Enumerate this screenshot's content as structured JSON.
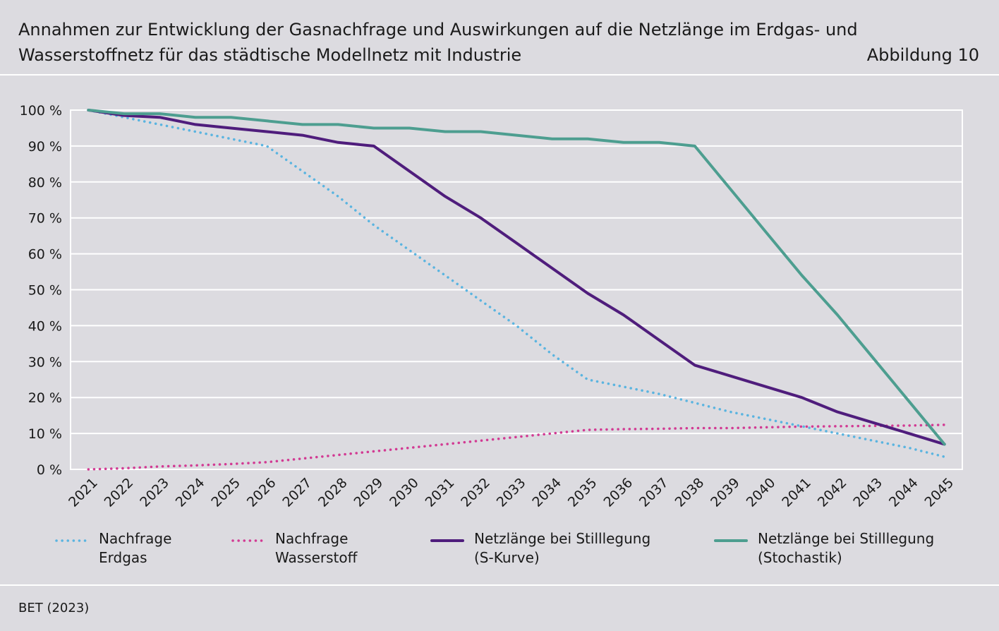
{
  "header": {
    "title": "Annahmen zur Entwicklung der Gasnachfrage und Auswirkungen auf die Netzlänge im Erdgas- und Wasserstoffnetz für das städtische Modellnetz mit Industrie",
    "figure_number": "Abbildung 10"
  },
  "source": "BET (2023)",
  "chart_data": {
    "type": "line",
    "title": "",
    "xlabel": "",
    "ylabel": "",
    "x": [
      "2021",
      "2022",
      "2023",
      "2024",
      "2025",
      "2026",
      "2027",
      "2028",
      "2029",
      "2030",
      "2031",
      "2032",
      "2033",
      "2034",
      "2035",
      "2036",
      "2037",
      "2038",
      "2039",
      "2040",
      "2041",
      "2042",
      "2043",
      "2044",
      "2045"
    ],
    "ylim": [
      0,
      100
    ],
    "y_ticks": [
      0,
      10,
      20,
      30,
      40,
      50,
      60,
      70,
      80,
      90,
      100
    ],
    "y_tick_labels": [
      "0 %",
      "10 %",
      "20 %",
      "30 %",
      "40 %",
      "50 %",
      "60 %",
      "70 %",
      "80 %",
      "90 %",
      "100 %"
    ],
    "grid": true,
    "legend_position": "bottom",
    "series": [
      {
        "name": "Nachfrage\nErdgas",
        "style": "dotted",
        "color": "#5ab4e0",
        "values": [
          100,
          98,
          96,
          94,
          92,
          90,
          83,
          76,
          68,
          61,
          54,
          47,
          40,
          32,
          25,
          23,
          21,
          18.5,
          16,
          14,
          12,
          10,
          8,
          6,
          3.5
        ]
      },
      {
        "name": "Nachfrage\nWasserstoff",
        "style": "dotted",
        "color": "#d23a93",
        "values": [
          0,
          0.3,
          0.8,
          1.1,
          1.5,
          2,
          3,
          4,
          5,
          6,
          7,
          8,
          9,
          10,
          11,
          11.2,
          11.3,
          11.5,
          11.5,
          11.7,
          11.9,
          12,
          12.1,
          12.2,
          12.4
        ]
      },
      {
        "name": "Netzlänge bei Stilllegung\n(S-Kurve)",
        "style": "solid",
        "color": "#4f1d7c",
        "values": [
          100,
          98.5,
          98,
          96,
          95,
          94,
          93,
          91,
          90,
          83,
          76,
          70,
          63,
          56,
          49,
          43,
          36,
          29,
          26,
          23,
          20,
          16,
          13,
          10,
          7
        ]
      },
      {
        "name": "Netzlänge bei Stilllegung\n(Stochastik)",
        "style": "solid",
        "color": "#4d9e90",
        "values": [
          100,
          99,
          99,
          98,
          98,
          97,
          96,
          96,
          95,
          95,
          94,
          94,
          93,
          92,
          92,
          91,
          91,
          90,
          78,
          66,
          54,
          43,
          31,
          19,
          7
        ]
      }
    ]
  }
}
